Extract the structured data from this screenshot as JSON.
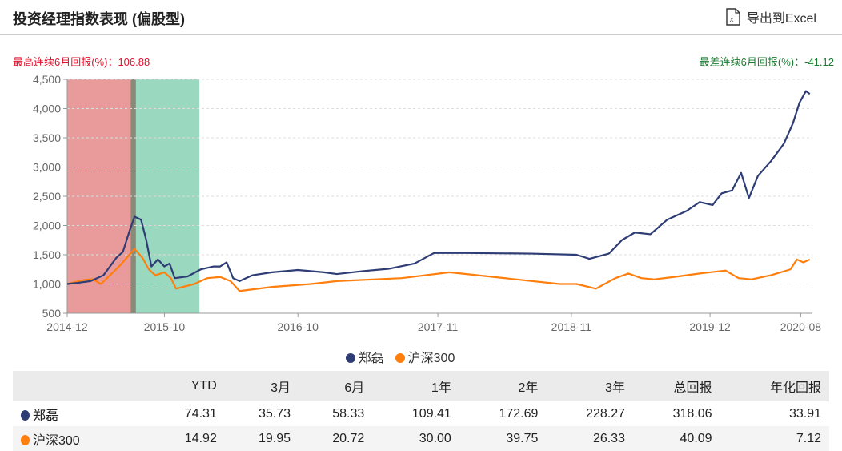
{
  "header": {
    "title": "投资经理指数表现 (偏股型)",
    "export_label": "导出到Excel"
  },
  "stats": {
    "best_label": "最高连续6月回报(%)：",
    "best_value": "106.88",
    "worst_label": "最差连续6月回报(%)：",
    "worst_value": "-41.12"
  },
  "colors": {
    "manager": "#2f3d75",
    "index": "#ff7f0e",
    "best_band": "#e99a9a",
    "worst_band": "#9ad8c0"
  },
  "chart_data": {
    "type": "line",
    "ylim": [
      500,
      4500
    ],
    "yticks": [
      "500",
      "1,000",
      "1,500",
      "2,000",
      "2,500",
      "3,000",
      "3,500",
      "4,000",
      "4,500"
    ],
    "ytick_values": [
      500,
      1000,
      1500,
      2000,
      2500,
      3000,
      3500,
      4000,
      4500
    ],
    "xlim": [
      2014.92,
      2020.67
    ],
    "xticks": [
      {
        "label": "2014-12",
        "x": 2014.92
      },
      {
        "label": "2015-10",
        "x": 2015.67
      },
      {
        "label": "2016-10",
        "x": 2016.7
      },
      {
        "label": "2017-11",
        "x": 2017.78
      },
      {
        "label": "2018-11",
        "x": 2018.81
      },
      {
        "label": "2019-12",
        "x": 2019.88
      },
      {
        "label": "2020-08",
        "x": 2020.58
      }
    ],
    "bands": [
      {
        "name": "best-6m",
        "from": 2014.92,
        "to": 2015.45
      },
      {
        "name": "worst-6m",
        "from": 2015.41,
        "to": 2015.94
      }
    ],
    "series": [
      {
        "name": "郑磊",
        "points": [
          [
            2014.92,
            1000
          ],
          [
            2015.0,
            1020
          ],
          [
            2015.1,
            1050
          ],
          [
            2015.15,
            1100
          ],
          [
            2015.2,
            1150
          ],
          [
            2015.25,
            1300
          ],
          [
            2015.3,
            1450
          ],
          [
            2015.35,
            1550
          ],
          [
            2015.4,
            1900
          ],
          [
            2015.44,
            2150
          ],
          [
            2015.49,
            2100
          ],
          [
            2015.53,
            1750
          ],
          [
            2015.57,
            1300
          ],
          [
            2015.62,
            1420
          ],
          [
            2015.67,
            1300
          ],
          [
            2015.71,
            1350
          ],
          [
            2015.75,
            1100
          ],
          [
            2015.85,
            1130
          ],
          [
            2015.95,
            1250
          ],
          [
            2016.05,
            1300
          ],
          [
            2016.1,
            1300
          ],
          [
            2016.15,
            1370
          ],
          [
            2016.2,
            1100
          ],
          [
            2016.25,
            1050
          ],
          [
            2016.35,
            1150
          ],
          [
            2016.5,
            1200
          ],
          [
            2016.7,
            1240
          ],
          [
            2016.9,
            1200
          ],
          [
            2017.0,
            1170
          ],
          [
            2017.2,
            1220
          ],
          [
            2017.4,
            1260
          ],
          [
            2017.6,
            1350
          ],
          [
            2017.75,
            1530
          ],
          [
            2018.0,
            1530
          ],
          [
            2018.5,
            1520
          ],
          [
            2018.85,
            1500
          ],
          [
            2018.95,
            1430
          ],
          [
            2019.1,
            1520
          ],
          [
            2019.2,
            1750
          ],
          [
            2019.3,
            1880
          ],
          [
            2019.42,
            1850
          ],
          [
            2019.55,
            2100
          ],
          [
            2019.7,
            2250
          ],
          [
            2019.8,
            2400
          ],
          [
            2019.9,
            2350
          ],
          [
            2019.97,
            2550
          ],
          [
            2020.05,
            2600
          ],
          [
            2020.12,
            2900
          ],
          [
            2020.18,
            2470
          ],
          [
            2020.25,
            2850
          ],
          [
            2020.35,
            3100
          ],
          [
            2020.45,
            3400
          ],
          [
            2020.52,
            3750
          ],
          [
            2020.57,
            4100
          ],
          [
            2020.62,
            4300
          ],
          [
            2020.65,
            4250
          ]
        ]
      },
      {
        "name": "沪深300",
        "points": [
          [
            2014.92,
            1000
          ],
          [
            2015.05,
            1070
          ],
          [
            2015.12,
            1080
          ],
          [
            2015.18,
            1000
          ],
          [
            2015.25,
            1150
          ],
          [
            2015.32,
            1300
          ],
          [
            2015.38,
            1450
          ],
          [
            2015.44,
            1600
          ],
          [
            2015.5,
            1450
          ],
          [
            2015.55,
            1250
          ],
          [
            2015.6,
            1150
          ],
          [
            2015.67,
            1200
          ],
          [
            2015.72,
            1100
          ],
          [
            2015.76,
            920
          ],
          [
            2015.9,
            1000
          ],
          [
            2016.0,
            1100
          ],
          [
            2016.1,
            1120
          ],
          [
            2016.18,
            1050
          ],
          [
            2016.25,
            880
          ],
          [
            2016.5,
            950
          ],
          [
            2016.8,
            1000
          ],
          [
            2017.0,
            1050
          ],
          [
            2017.5,
            1100
          ],
          [
            2017.87,
            1200
          ],
          [
            2018.72,
            1000
          ],
          [
            2018.85,
            1000
          ],
          [
            2019.0,
            920
          ],
          [
            2019.15,
            1100
          ],
          [
            2019.25,
            1180
          ],
          [
            2019.35,
            1100
          ],
          [
            2019.45,
            1080
          ],
          [
            2019.6,
            1120
          ],
          [
            2019.8,
            1180
          ],
          [
            2020.0,
            1230
          ],
          [
            2020.1,
            1100
          ],
          [
            2020.2,
            1080
          ],
          [
            2020.35,
            1150
          ],
          [
            2020.5,
            1250
          ],
          [
            2020.55,
            1420
          ],
          [
            2020.6,
            1370
          ],
          [
            2020.65,
            1420
          ]
        ]
      }
    ]
  },
  "legend": [
    {
      "label": "郑磊"
    },
    {
      "label": "沪深300"
    }
  ],
  "table": {
    "headers": [
      "",
      "YTD",
      "3月",
      "6月",
      "1年",
      "2年",
      "3年",
      "总回报",
      "年化回报"
    ],
    "rows": [
      {
        "name": "郑磊",
        "values": [
          "74.31",
          "35.73",
          "58.33",
          "109.41",
          "172.69",
          "228.27",
          "318.06",
          "33.91"
        ]
      },
      {
        "name": "沪深300",
        "values": [
          "14.92",
          "19.95",
          "20.72",
          "30.00",
          "39.75",
          "26.33",
          "40.09",
          "7.12"
        ]
      }
    ]
  }
}
